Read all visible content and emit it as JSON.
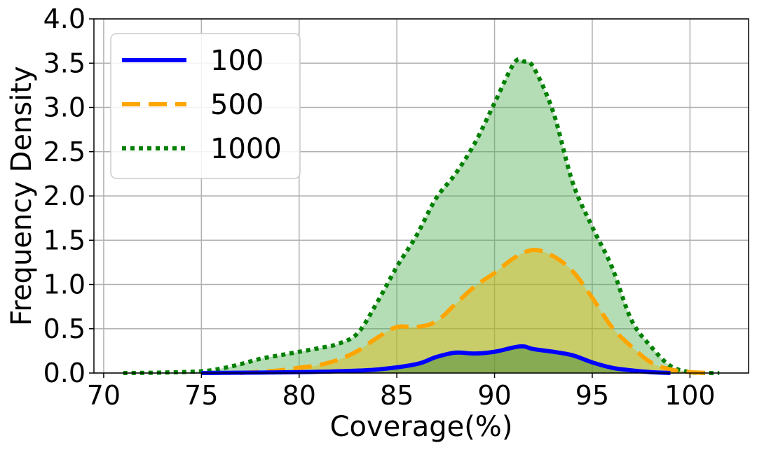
{
  "chart_data": {
    "type": "area",
    "title": "",
    "xlabel": "Coverage(%)",
    "ylabel": "Frequency Density",
    "xlim": [
      69.5,
      103
    ],
    "ylim": [
      0,
      4.0
    ],
    "xticks": [
      "70",
      "75",
      "80",
      "85",
      "90",
      "95",
      "100"
    ],
    "yticks": [
      "0.0",
      "0.5",
      "1.0",
      "1.5",
      "2.0",
      "2.5",
      "3.0",
      "3.5",
      "4.0"
    ],
    "grid": true,
    "legend_position": "top-left",
    "series": [
      {
        "name": "100",
        "color": "#0000ff",
        "fill": "#2e7d32",
        "line_style": "solid",
        "points": [
          [
            75,
            0.0
          ],
          [
            78,
            0.005
          ],
          [
            80,
            0.01
          ],
          [
            82,
            0.02
          ],
          [
            84,
            0.04
          ],
          [
            86,
            0.1
          ],
          [
            87,
            0.18
          ],
          [
            88,
            0.23
          ],
          [
            89,
            0.22
          ],
          [
            90,
            0.24
          ],
          [
            91,
            0.29
          ],
          [
            91.5,
            0.3
          ],
          [
            92,
            0.27
          ],
          [
            93,
            0.24
          ],
          [
            94,
            0.2
          ],
          [
            95,
            0.12
          ],
          [
            96,
            0.06
          ],
          [
            97,
            0.03
          ],
          [
            98,
            0.01
          ],
          [
            99,
            0.0
          ]
        ]
      },
      {
        "name": "500",
        "color": "#ffa500",
        "fill": "#e6b800",
        "line_style": "dashed",
        "points": [
          [
            77,
            0.0
          ],
          [
            79,
            0.03
          ],
          [
            80,
            0.06
          ],
          [
            81,
            0.09
          ],
          [
            82,
            0.15
          ],
          [
            83,
            0.25
          ],
          [
            84,
            0.4
          ],
          [
            85,
            0.52
          ],
          [
            86,
            0.52
          ],
          [
            87,
            0.58
          ],
          [
            88,
            0.78
          ],
          [
            89,
            0.98
          ],
          [
            90,
            1.13
          ],
          [
            91,
            1.3
          ],
          [
            92,
            1.39
          ],
          [
            93,
            1.32
          ],
          [
            94,
            1.15
          ],
          [
            95,
            0.85
          ],
          [
            96,
            0.52
          ],
          [
            97,
            0.3
          ],
          [
            98,
            0.12
          ],
          [
            99,
            0.04
          ],
          [
            100,
            0.01
          ],
          [
            101,
            0.0
          ]
        ]
      },
      {
        "name": "1000",
        "color": "#008000",
        "fill": "#4caf50",
        "line_style": "dotted",
        "points": [
          [
            71,
            0.0
          ],
          [
            73,
            0.005
          ],
          [
            75,
            0.02
          ],
          [
            76,
            0.05
          ],
          [
            77,
            0.1
          ],
          [
            78,
            0.16
          ],
          [
            79,
            0.2
          ],
          [
            80,
            0.24
          ],
          [
            81,
            0.28
          ],
          [
            82,
            0.33
          ],
          [
            83,
            0.45
          ],
          [
            84,
            0.8
          ],
          [
            85,
            1.2
          ],
          [
            86,
            1.55
          ],
          [
            87,
            1.97
          ],
          [
            88,
            2.25
          ],
          [
            89,
            2.6
          ],
          [
            90,
            3.05
          ],
          [
            91,
            3.5
          ],
          [
            91.5,
            3.52
          ],
          [
            92,
            3.45
          ],
          [
            93,
            2.95
          ],
          [
            94,
            2.15
          ],
          [
            95,
            1.65
          ],
          [
            96,
            1.2
          ],
          [
            97,
            0.6
          ],
          [
            98,
            0.3
          ],
          [
            99,
            0.08
          ],
          [
            100,
            0.01
          ],
          [
            101,
            0.0
          ],
          [
            101.5,
            0.0
          ]
        ]
      }
    ]
  }
}
